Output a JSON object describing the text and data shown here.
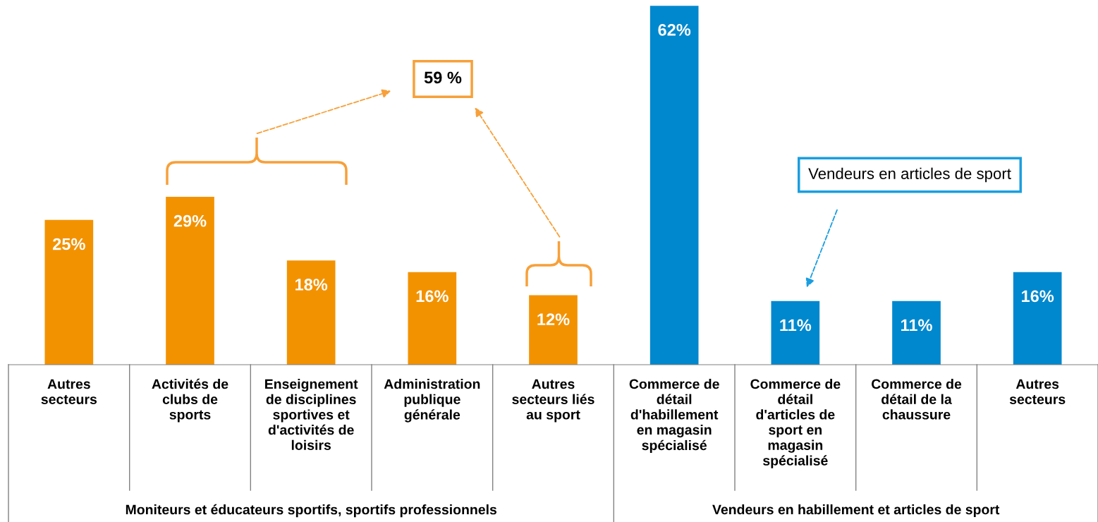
{
  "chart_data": {
    "type": "bar",
    "categories": [
      "Autres\nsecteurs",
      "Activités de\nclubs de\nsports",
      "Enseignement\nde disciplines\nsportives et\nd'activités de\nloisirs",
      "Administration\npublique\ngénérale",
      "Autres\nsecteurs liés\nau sport",
      "Commerce de\ndétail\nd'habillement\nen magasin\nspécialisé",
      "Commerce de\ndétail\nd'articles de\nsport en\nmagasin\nspécialisé",
      "Commerce de\ndétail de la\nchaussure",
      "Autres\nsecteurs"
    ],
    "values": [
      25,
      29,
      18,
      16,
      12,
      62,
      11,
      11,
      16
    ],
    "value_labels": [
      "25%",
      "29%",
      "18%",
      "16%",
      "12%",
      "62%",
      "11%",
      "11%",
      "16%"
    ],
    "colors": [
      "#f39200",
      "#f39200",
      "#f39200",
      "#f39200",
      "#f39200",
      "#0088ce",
      "#0088ce",
      "#0088ce",
      "#0088ce"
    ],
    "annotations": [
      "59 %",
      "Vendeurs en articles de sport",
      "Moniteurs et éducateurs sportifs, sportifs professionnels",
      "Vendeurs en habillement et articles de sport"
    ],
    "legend": false
  }
}
